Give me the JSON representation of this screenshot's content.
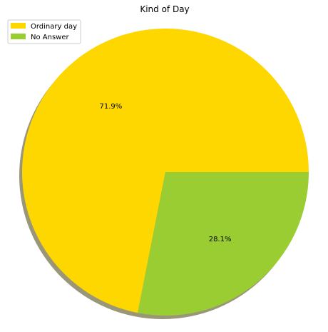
{
  "chart_data": {
    "type": "pie",
    "title": "Kind of Day",
    "categories": [
      "Ordinary day",
      "No Answer"
    ],
    "values": [
      71.9,
      28.1
    ],
    "labels": [
      "71.9%",
      "28.1%"
    ],
    "colors": [
      "#ffd700",
      "#9acd32"
    ],
    "shadow": true,
    "legend_position": "top-left"
  }
}
